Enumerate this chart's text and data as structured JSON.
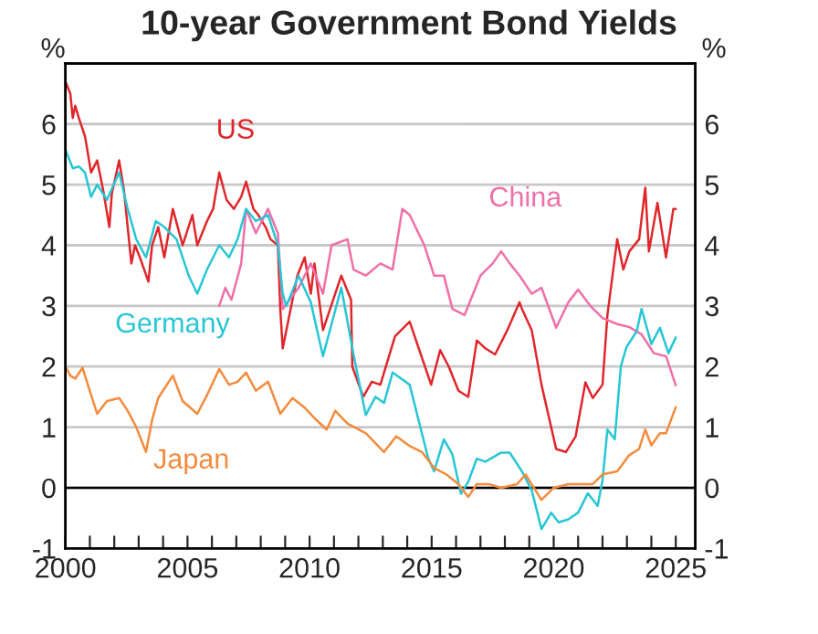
{
  "chart_data": {
    "type": "line",
    "title": "10-year Government Bond Yields",
    "ylabel": "%",
    "y2label": "%",
    "xlim": [
      2000,
      2025.8
    ],
    "ylim": [
      -1,
      7
    ],
    "y2lim": [
      -1,
      7
    ],
    "xticks": [
      2000,
      {
        "value": 2001,
        "label": null
      },
      {
        "value": 2002,
        "label": null
      },
      {
        "value": 2003,
        "label": null
      },
      {
        "value": 2004,
        "label": null
      },
      2005,
      {
        "value": 2006,
        "label": null
      },
      {
        "value": 2007,
        "label": null
      },
      {
        "value": 2008,
        "label": null
      },
      {
        "value": 2009,
        "label": null
      },
      2010,
      {
        "value": 2011,
        "label": null
      },
      {
        "value": 2012,
        "label": null
      },
      {
        "value": 2013,
        "label": null
      },
      {
        "value": 2014,
        "label": null
      },
      2015,
      {
        "value": 2016,
        "label": null
      },
      {
        "value": 2017,
        "label": null
      },
      {
        "value": 2018,
        "label": null
      },
      {
        "value": 2019,
        "label": null
      },
      2020,
      {
        "value": 2021,
        "label": null
      },
      {
        "value": 2022,
        "label": null
      },
      {
        "value": 2023,
        "label": null
      },
      {
        "value": 2024,
        "label": null
      },
      2025
    ],
    "yticks": [
      -1,
      0,
      1,
      2,
      3,
      4,
      5,
      6
    ],
    "y2ticks": [
      -1,
      0,
      1,
      2,
      3,
      4,
      5,
      6
    ],
    "grid": "y",
    "legend": false,
    "line_style": "solid",
    "marker": "none",
    "ref_lines": [
      {
        "axis": "y",
        "value": 0,
        "color": "#000000"
      }
    ],
    "series": [
      {
        "name": "US",
        "color": "#e0262b",
        "x": [
          2000.0,
          2000.2,
          2000.3,
          2000.4,
          2000.55,
          2000.8,
          2001.05,
          2001.3,
          2001.55,
          2001.8,
          2001.9,
          2002.2,
          2002.4,
          2002.7,
          2002.85,
          2003.05,
          2003.4,
          2003.55,
          2003.8,
          2004.05,
          2004.4,
          2004.8,
          2005.2,
          2005.4,
          2005.8,
          2006.05,
          2006.3,
          2006.6,
          2006.9,
          2007.2,
          2007.4,
          2007.7,
          2007.9,
          2008.2,
          2008.4,
          2008.7,
          2008.8,
          2008.9,
          2009.5,
          2009.8,
          2010.05,
          2010.2,
          2010.55,
          2011.3,
          2011.7,
          2011.75,
          2012.2,
          2012.55,
          2012.9,
          2013.5,
          2014.1,
          2014.98,
          2015.35,
          2015.7,
          2016.1,
          2016.5,
          2016.85,
          2017.2,
          2017.6,
          2018.1,
          2018.6,
          2018.7,
          2019.1,
          2019.5,
          2020.1,
          2020.5,
          2020.9,
          2021.3,
          2021.6,
          2022.0,
          2022.2,
          2022.6,
          2022.85,
          2023.1,
          2023.5,
          2023.75,
          2023.9,
          2024.25,
          2024.6,
          2024.9,
          2025.0
        ],
        "values": [
          6.7,
          6.5,
          6.1,
          6.3,
          6.1,
          5.8,
          5.2,
          5.4,
          4.9,
          4.3,
          4.85,
          5.4,
          4.9,
          3.7,
          4.0,
          3.8,
          3.4,
          4.0,
          4.3,
          3.8,
          4.6,
          4.0,
          4.5,
          4.0,
          4.4,
          4.6,
          5.2,
          4.75,
          4.6,
          4.8,
          5.05,
          4.6,
          4.5,
          4.3,
          4.1,
          4.0,
          2.95,
          2.3,
          3.5,
          3.8,
          3.2,
          3.7,
          2.6,
          3.5,
          3.1,
          2.0,
          1.5,
          1.75,
          1.7,
          2.5,
          2.74,
          1.7,
          2.27,
          2.0,
          1.6,
          1.5,
          2.43,
          2.3,
          2.2,
          2.6,
          3.06,
          2.95,
          2.6,
          1.7,
          0.64,
          0.59,
          0.85,
          1.74,
          1.48,
          1.7,
          2.85,
          4.1,
          3.6,
          3.9,
          4.1,
          4.95,
          3.9,
          4.7,
          3.8,
          4.6,
          4.6
        ]
      },
      {
        "name": "China",
        "color": "#f06fa8",
        "x": [
          2006.3,
          2006.55,
          2006.8,
          2007.2,
          2007.4,
          2007.8,
          2008.3,
          2008.7,
          2008.9,
          2009.55,
          2010.05,
          2010.55,
          2010.9,
          2011.55,
          2011.8,
          2012.3,
          2012.9,
          2013.4,
          2013.8,
          2014.1,
          2014.7,
          2015.1,
          2015.5,
          2015.85,
          2016.35,
          2016.7,
          2017.0,
          2017.5,
          2017.85,
          2018.2,
          2018.6,
          2019.1,
          2019.5,
          2020.1,
          2020.6,
          2021.0,
          2021.5,
          2022.0,
          2022.6,
          2023.1,
          2023.6,
          2024.1,
          2024.6,
          2025.0
        ],
        "values": [
          3.0,
          3.3,
          3.1,
          3.7,
          4.6,
          4.2,
          4.6,
          4.2,
          2.95,
          3.3,
          3.7,
          3.2,
          4.0,
          4.1,
          3.6,
          3.5,
          3.7,
          3.6,
          4.6,
          4.5,
          4.0,
          3.5,
          3.5,
          2.95,
          2.85,
          3.2,
          3.5,
          3.7,
          3.9,
          3.7,
          3.5,
          3.2,
          3.3,
          2.64,
          3.06,
          3.27,
          3.0,
          2.8,
          2.7,
          2.65,
          2.53,
          2.22,
          2.17,
          1.69
        ]
      },
      {
        "name": "Germany",
        "color": "#27c6d4",
        "x": [
          2000.0,
          2000.3,
          2000.55,
          2000.8,
          2001.05,
          2001.3,
          2001.7,
          2002.2,
          2002.55,
          2002.9,
          2003.3,
          2003.7,
          2004.05,
          2004.55,
          2005.05,
          2005.4,
          2005.8,
          2006.3,
          2006.7,
          2007.05,
          2007.4,
          2007.8,
          2008.3,
          2008.7,
          2008.9,
          2009.05,
          2009.55,
          2010.05,
          2010.55,
          2010.9,
          2011.3,
          2011.8,
          2012.3,
          2012.7,
          2013.05,
          2013.4,
          2014.1,
          2014.85,
          2015.1,
          2015.5,
          2015.85,
          2016.2,
          2016.5,
          2016.85,
          2017.2,
          2017.85,
          2018.2,
          2018.7,
          2019.1,
          2019.5,
          2019.9,
          2020.2,
          2020.6,
          2021.0,
          2021.4,
          2021.8,
          2022.0,
          2022.2,
          2022.5,
          2022.75,
          2022.98,
          2023.4,
          2023.6,
          2024.0,
          2024.35,
          2024.7,
          2025.0
        ],
        "values": [
          5.58,
          5.27,
          5.3,
          5.2,
          4.8,
          5.0,
          4.75,
          5.2,
          4.6,
          4.1,
          3.8,
          4.4,
          4.3,
          4.1,
          3.5,
          3.2,
          3.6,
          4.0,
          3.8,
          4.1,
          4.6,
          4.4,
          4.5,
          4.0,
          3.2,
          3.0,
          3.5,
          3.06,
          2.17,
          2.7,
          3.3,
          2.2,
          1.2,
          1.5,
          1.4,
          1.9,
          1.7,
          0.5,
          0.27,
          0.8,
          0.55,
          -0.1,
          0.1,
          0.48,
          0.43,
          0.58,
          0.58,
          0.27,
          -0.04,
          -0.68,
          -0.41,
          -0.57,
          -0.52,
          -0.41,
          -0.09,
          -0.3,
          0.12,
          0.96,
          0.8,
          2.0,
          2.32,
          2.58,
          2.95,
          2.37,
          2.64,
          2.22,
          2.48
        ]
      },
      {
        "name": "Japan",
        "color": "#f58a3c",
        "x": [
          2000.0,
          2000.2,
          2000.4,
          2000.7,
          2001.05,
          2001.3,
          2001.7,
          2002.2,
          2002.55,
          2002.9,
          2003.3,
          2003.55,
          2003.8,
          2004.4,
          2004.8,
          2005.4,
          2005.8,
          2006.3,
          2006.7,
          2007.05,
          2007.4,
          2007.8,
          2008.3,
          2008.8,
          2009.3,
          2009.8,
          2010.3,
          2010.7,
          2011.05,
          2011.55,
          2012.3,
          2013.05,
          2013.55,
          2014.1,
          2014.6,
          2015.1,
          2015.6,
          2016.1,
          2016.5,
          2016.85,
          2017.35,
          2017.85,
          2018.5,
          2018.85,
          2019.5,
          2020.0,
          2020.6,
          2021.1,
          2021.6,
          2022.0,
          2022.6,
          2023.1,
          2023.5,
          2023.75,
          2024.0,
          2024.35,
          2024.6,
          2025.0
        ],
        "values": [
          2.0,
          1.85,
          1.8,
          1.98,
          1.53,
          1.22,
          1.43,
          1.48,
          1.27,
          1.0,
          0.59,
          1.12,
          1.48,
          1.85,
          1.43,
          1.22,
          1.53,
          1.96,
          1.7,
          1.75,
          1.9,
          1.6,
          1.75,
          1.22,
          1.48,
          1.32,
          1.11,
          0.96,
          1.27,
          1.06,
          0.9,
          0.59,
          0.85,
          0.69,
          0.59,
          0.33,
          0.22,
          0.06,
          -0.15,
          0.06,
          0.06,
          0.0,
          0.06,
          0.22,
          -0.2,
          0.0,
          0.06,
          0.06,
          0.06,
          0.22,
          0.27,
          0.54,
          0.64,
          0.96,
          0.7,
          0.9,
          0.9,
          1.33
        ]
      }
    ]
  }
}
